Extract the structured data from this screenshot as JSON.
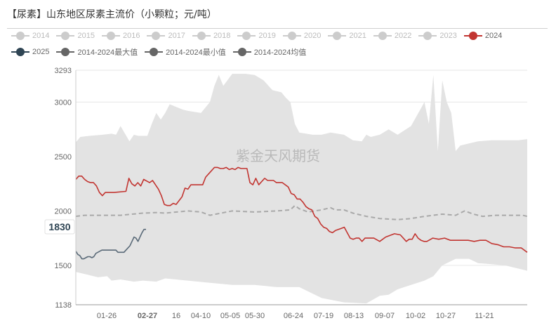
{
  "title": "【尿素】山东地区尿素主流价（小颗粒；元/吨）",
  "watermark": "紫金天风期货",
  "legend": [
    {
      "label": "2014",
      "color": "#cccccc",
      "active": false
    },
    {
      "label": "2015",
      "color": "#cccccc",
      "active": false
    },
    {
      "label": "2016",
      "color": "#cccccc",
      "active": false
    },
    {
      "label": "2017",
      "color": "#cccccc",
      "active": false
    },
    {
      "label": "2018",
      "color": "#cccccc",
      "active": false
    },
    {
      "label": "2019",
      "color": "#cccccc",
      "active": false
    },
    {
      "label": "2020",
      "color": "#cccccc",
      "active": false
    },
    {
      "label": "2021",
      "color": "#cccccc",
      "active": false
    },
    {
      "label": "2022",
      "color": "#cccccc",
      "active": false
    },
    {
      "label": "2023",
      "color": "#cccccc",
      "active": false
    },
    {
      "label": "2024",
      "color": "#c23531",
      "active": true
    },
    {
      "label": "2025",
      "color": "#2f4554",
      "active": true
    },
    {
      "label": "2014-2024最大值",
      "color": "#666666",
      "active": true
    },
    {
      "label": "2014-2024最小值",
      "color": "#666666",
      "active": true
    },
    {
      "label": "2014-2024均值",
      "color": "#666666",
      "active": true
    }
  ],
  "chart_data": {
    "type": "line",
    "ylim": [
      1138,
      3293
    ],
    "y_ticks": [
      1138,
      1500,
      2000,
      2500,
      3000,
      3293
    ],
    "x_tick_labels": [
      "01-26",
      "02-27",
      "16",
      "04-10",
      "05-05",
      "05-30",
      "06-24",
      "07-19",
      "08-13",
      "09-07",
      "10-02",
      "10-27",
      "11-21"
    ],
    "highlight_label": "1830",
    "series": [
      {
        "name": "2014-2024最大值",
        "color": "#e3e3e3",
        "points": [
          [
            0,
            2630
          ],
          [
            1,
            2680
          ],
          [
            3,
            2690
          ],
          [
            6,
            2700
          ],
          [
            8,
            2710
          ],
          [
            9,
            2700
          ],
          [
            10,
            2780
          ],
          [
            12,
            2640
          ],
          [
            13,
            2700
          ],
          [
            14,
            2690
          ],
          [
            16,
            2690
          ],
          [
            17,
            2800
          ],
          [
            18,
            2900
          ],
          [
            19,
            2840
          ],
          [
            20,
            2900
          ],
          [
            21,
            2980
          ],
          [
            24,
            2930
          ],
          [
            25,
            2920
          ],
          [
            28,
            2900
          ],
          [
            30,
            3000
          ],
          [
            31,
            3150
          ],
          [
            32,
            3250
          ],
          [
            33,
            3150
          ],
          [
            35,
            3260
          ],
          [
            38,
            3260
          ],
          [
            40,
            3250
          ],
          [
            42,
            3200
          ],
          [
            44,
            3110
          ],
          [
            46,
            3090
          ],
          [
            47,
            3040
          ],
          [
            48,
            3000
          ],
          [
            49,
            2800
          ],
          [
            50,
            2720
          ],
          [
            53,
            2700
          ],
          [
            55,
            2700
          ],
          [
            57,
            2720
          ],
          [
            60,
            2700
          ],
          [
            62,
            2650
          ],
          [
            64,
            2640
          ],
          [
            65,
            2700
          ],
          [
            66,
            2680
          ],
          [
            68,
            2700
          ],
          [
            70,
            2750
          ],
          [
            72,
            2700
          ],
          [
            75,
            2780
          ],
          [
            78,
            3000
          ],
          [
            79,
            2800
          ],
          [
            80,
            3250
          ],
          [
            81,
            2550
          ],
          [
            82,
            3200
          ],
          [
            83,
            3000
          ],
          [
            84,
            2900
          ],
          [
            85,
            2550
          ],
          [
            86,
            2600
          ],
          [
            88,
            2620
          ],
          [
            90,
            2640
          ],
          [
            93,
            2650
          ],
          [
            96,
            2650
          ],
          [
            99,
            2650
          ],
          [
            101,
            2660
          ]
        ]
      },
      {
        "name": "2014-2024最小值",
        "color": "#e3e3e3",
        "points": [
          [
            0,
            1440
          ],
          [
            2,
            1420
          ],
          [
            5,
            1390
          ],
          [
            7,
            1400
          ],
          [
            8,
            1360
          ],
          [
            10,
            1370
          ],
          [
            13,
            1350
          ],
          [
            15,
            1360
          ],
          [
            18,
            1350
          ],
          [
            20,
            1380
          ],
          [
            25,
            1360
          ],
          [
            30,
            1340
          ],
          [
            35,
            1320
          ],
          [
            40,
            1320
          ],
          [
            45,
            1300
          ],
          [
            50,
            1300
          ],
          [
            55,
            1200
          ],
          [
            60,
            1160
          ],
          [
            65,
            1150
          ],
          [
            68,
            1220
          ],
          [
            70,
            1230
          ],
          [
            72,
            1280
          ],
          [
            75,
            1320
          ],
          [
            78,
            1360
          ],
          [
            80,
            1400
          ],
          [
            82,
            1500
          ],
          [
            85,
            1560
          ],
          [
            88,
            1560
          ],
          [
            90,
            1520
          ],
          [
            93,
            1510
          ],
          [
            96,
            1500
          ],
          [
            99,
            1470
          ],
          [
            101,
            1450
          ]
        ]
      },
      {
        "name": "2014-2024均值",
        "color": "#a9a9a9",
        "dashed": true,
        "points": [
          [
            0,
            1950
          ],
          [
            2,
            1960
          ],
          [
            5,
            1960
          ],
          [
            10,
            1960
          ],
          [
            15,
            1980
          ],
          [
            18,
            1985
          ],
          [
            20,
            1980
          ],
          [
            25,
            2000
          ],
          [
            28,
            1990
          ],
          [
            30,
            1960
          ],
          [
            35,
            2000
          ],
          [
            40,
            1990
          ],
          [
            45,
            2000
          ],
          [
            48,
            2010
          ],
          [
            49,
            2050
          ],
          [
            50,
            2020
          ],
          [
            52,
            1990
          ],
          [
            55,
            2010
          ],
          [
            57,
            2030
          ],
          [
            58,
            2010
          ],
          [
            60,
            2010
          ],
          [
            62,
            1980
          ],
          [
            65,
            1950
          ],
          [
            68,
            1930
          ],
          [
            72,
            1920
          ],
          [
            75,
            1930
          ],
          [
            78,
            1950
          ],
          [
            80,
            1960
          ],
          [
            82,
            1970
          ],
          [
            85,
            1960
          ],
          [
            87,
            2000
          ],
          [
            89,
            1970
          ],
          [
            91,
            1950
          ],
          [
            94,
            1960
          ],
          [
            97,
            1960
          ],
          [
            100,
            1960
          ],
          [
            101,
            1950
          ]
        ]
      },
      {
        "name": "2024",
        "color": "#c23531",
        "points": [
          [
            0,
            2290
          ],
          [
            1,
            2320
          ],
          [
            2,
            2320
          ],
          [
            3,
            2290
          ],
          [
            4,
            2270
          ],
          [
            5,
            2260
          ],
          [
            6,
            2260
          ],
          [
            7,
            2230
          ],
          [
            8,
            2170
          ],
          [
            9,
            2140
          ],
          [
            10,
            2170
          ],
          [
            13,
            2170
          ],
          [
            17,
            2180
          ],
          [
            18,
            2300
          ],
          [
            19,
            2250
          ],
          [
            20,
            2230
          ],
          [
            21,
            2260
          ],
          [
            22,
            2230
          ],
          [
            23,
            2290
          ],
          [
            25,
            2260
          ],
          [
            26,
            2280
          ],
          [
            27,
            2240
          ],
          [
            28,
            2200
          ],
          [
            29,
            2140
          ],
          [
            30,
            2060
          ],
          [
            31,
            2050
          ],
          [
            32,
            2050
          ],
          [
            33,
            2070
          ],
          [
            34,
            2060
          ],
          [
            36,
            2130
          ],
          [
            37,
            2210
          ],
          [
            38,
            2200
          ],
          [
            39,
            2240
          ],
          [
            40,
            2240
          ],
          [
            43,
            2240
          ],
          [
            44,
            2310
          ],
          [
            45,
            2340
          ],
          [
            46,
            2370
          ],
          [
            47,
            2400
          ],
          [
            48,
            2400
          ],
          [
            49,
            2390
          ],
          [
            50,
            2390
          ],
          [
            51,
            2400
          ],
          [
            52,
            2380
          ],
          [
            53,
            2390
          ],
          [
            54,
            2380
          ],
          [
            55,
            2400
          ],
          [
            56,
            2390
          ],
          [
            57,
            2390
          ],
          [
            58,
            2390
          ],
          [
            59,
            2260
          ],
          [
            60,
            2240
          ],
          [
            61,
            2300
          ],
          [
            62,
            2240
          ],
          [
            64,
            2300
          ],
          [
            65,
            2280
          ],
          [
            67,
            2280
          ],
          [
            68,
            2260
          ],
          [
            70,
            2260
          ],
          [
            72,
            2220
          ],
          [
            73,
            2160
          ],
          [
            74,
            2150
          ],
          [
            75,
            2110
          ],
          [
            76,
            2110
          ],
          [
            77,
            2080
          ],
          [
            78,
            2040
          ],
          [
            79,
            2020
          ],
          [
            80,
            2010
          ],
          [
            81,
            1950
          ],
          [
            82,
            1930
          ],
          [
            83,
            1880
          ],
          [
            84,
            1850
          ],
          [
            85,
            1840
          ],
          [
            86,
            1810
          ],
          [
            87,
            1800
          ],
          [
            88,
            1820
          ],
          [
            89,
            1830
          ],
          [
            90,
            1840
          ],
          [
            91,
            1850
          ],
          [
            92,
            1800
          ],
          [
            93,
            1750
          ],
          [
            94,
            1740
          ],
          [
            95,
            1750
          ],
          [
            96,
            1750
          ],
          [
            97,
            1720
          ],
          [
            98,
            1750
          ],
          [
            101,
            1750
          ],
          [
            103,
            1720
          ],
          [
            105,
            1760
          ],
          [
            108,
            1790
          ],
          [
            110,
            1780
          ],
          [
            112,
            1720
          ],
          [
            113,
            1740
          ],
          [
            114,
            1740
          ],
          [
            115,
            1790
          ],
          [
            116,
            1750
          ],
          [
            117,
            1730
          ],
          [
            118,
            1720
          ],
          [
            119,
            1720
          ],
          [
            121,
            1750
          ],
          [
            123,
            1740
          ],
          [
            125,
            1750
          ],
          [
            127,
            1730
          ],
          [
            129,
            1730
          ],
          [
            131,
            1730
          ],
          [
            133,
            1730
          ],
          [
            135,
            1720
          ],
          [
            137,
            1730
          ],
          [
            139,
            1730
          ],
          [
            141,
            1700
          ],
          [
            143,
            1690
          ],
          [
            145,
            1670
          ],
          [
            147,
            1670
          ],
          [
            149,
            1660
          ],
          [
            151,
            1660
          ],
          [
            153,
            1620
          ]
        ]
      },
      {
        "name": "2025",
        "color": "#5a6a78",
        "points": [
          [
            0,
            1630
          ],
          [
            1,
            1600
          ],
          [
            2,
            1590
          ],
          [
            3,
            1560
          ],
          [
            4,
            1560
          ],
          [
            5,
            1570
          ],
          [
            6,
            1580
          ],
          [
            7,
            1580
          ],
          [
            8,
            1570
          ],
          [
            9,
            1580
          ],
          [
            10,
            1610
          ],
          [
            11,
            1620
          ],
          [
            12,
            1630
          ],
          [
            13,
            1640
          ],
          [
            14,
            1640
          ],
          [
            15,
            1640
          ],
          [
            16,
            1640
          ],
          [
            17,
            1640
          ],
          [
            18,
            1640
          ],
          [
            19,
            1640
          ],
          [
            20,
            1640
          ],
          [
            21,
            1620
          ],
          [
            22,
            1620
          ],
          [
            23,
            1620
          ],
          [
            24,
            1620
          ],
          [
            25,
            1640
          ],
          [
            26,
            1660
          ],
          [
            27,
            1680
          ],
          [
            28,
            1720
          ],
          [
            29,
            1760
          ],
          [
            30,
            1750
          ],
          [
            31,
            1720
          ],
          [
            32,
            1760
          ],
          [
            33,
            1800
          ],
          [
            34,
            1830
          ],
          [
            35,
            1830
          ]
        ]
      }
    ]
  }
}
